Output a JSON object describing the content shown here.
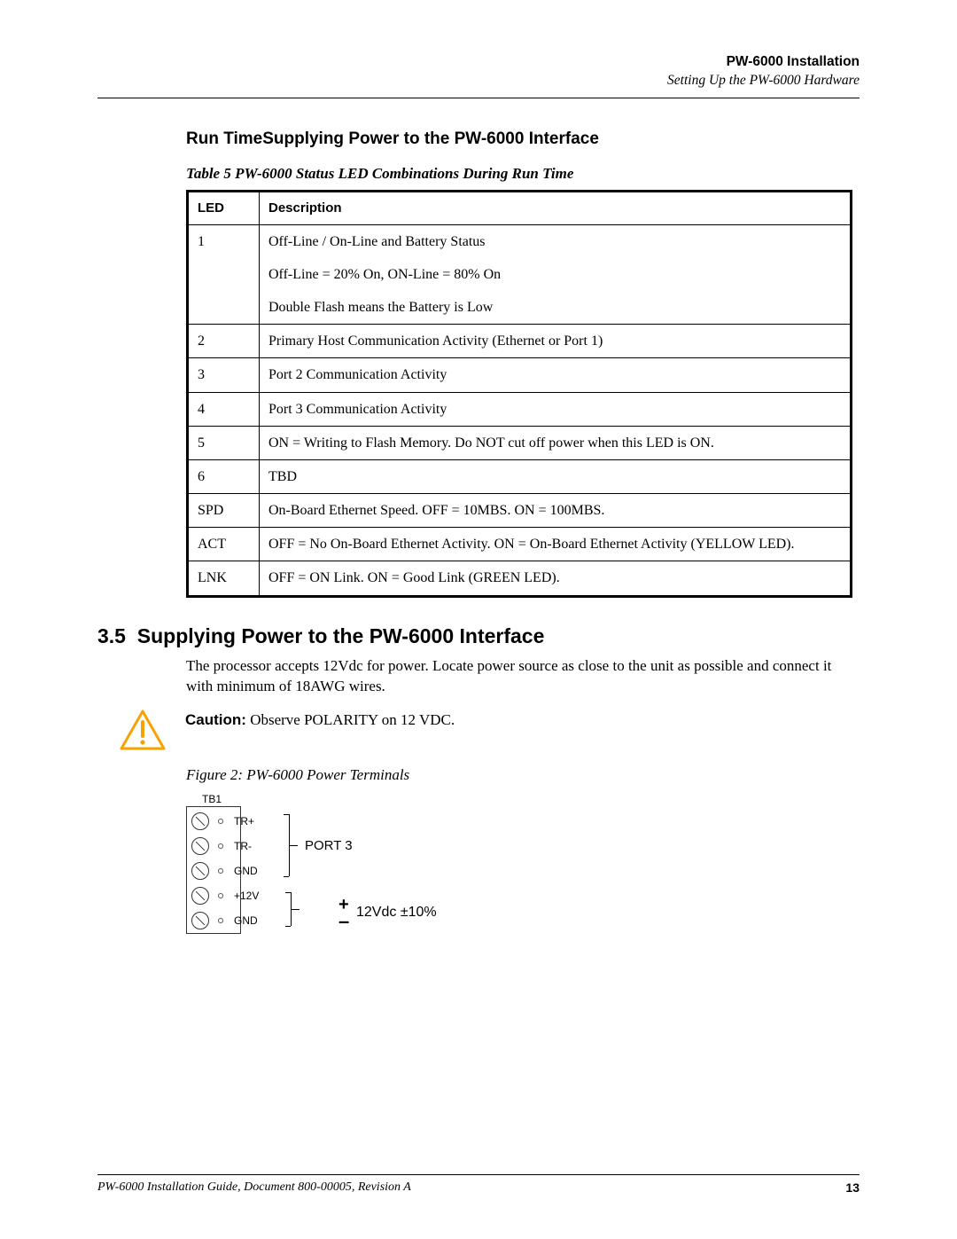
{
  "header": {
    "doc_title": "PW-6000 Installation",
    "section_path": "Setting Up the PW-6000 Hardware"
  },
  "subheading": "Run TimeSupplying Power to the PW-6000 Interface",
  "table": {
    "caption": "Table 5  PW-6000 Status LED Combinations During Run Time",
    "columns": [
      "LED",
      "Description"
    ],
    "rows": [
      {
        "led": "1",
        "desc_lines": [
          "Off-Line / On-Line and Battery Status",
          "Off-Line = 20% On, ON-Line = 80% On",
          "Double Flash means the Battery is Low"
        ]
      },
      {
        "led": "2",
        "desc_lines": [
          "Primary Host Communication Activity (Ethernet or Port 1)"
        ]
      },
      {
        "led": "3",
        "desc_lines": [
          "Port 2 Communication Activity"
        ]
      },
      {
        "led": "4",
        "desc_lines": [
          "Port 3 Communication Activity"
        ]
      },
      {
        "led": "5",
        "desc_lines": [
          "ON = Writing to Flash Memory. Do NOT cut off power when this LED is ON."
        ]
      },
      {
        "led": "6",
        "desc_lines": [
          "TBD"
        ]
      },
      {
        "led": "SPD",
        "desc_lines": [
          "On-Board Ethernet Speed. OFF = 10MBS. ON = 100MBS."
        ]
      },
      {
        "led": "ACT",
        "desc_lines": [
          "OFF = No On-Board Ethernet Activity. ON = On-Board Ethernet Activity (YELLOW LED)."
        ]
      },
      {
        "led": "LNK",
        "desc_lines": [
          "OFF = ON Link. ON = Good Link (GREEN LED)."
        ]
      }
    ]
  },
  "section": {
    "number": "3.5",
    "title": "Supplying Power to the PW-6000 Interface",
    "body": "The processor accepts 12Vdc for power. Locate power source as close to the unit as possible and connect it with minimum of 18AWG wires.",
    "caution_label": "Caution:",
    "caution_text": " Observe POLARITY on 12 VDC."
  },
  "figure": {
    "caption": "Figure 2:    PW-6000 Power Terminals",
    "block_label": "TB1",
    "pins": [
      "TR+",
      "TR-",
      "GND",
      "+12V",
      "GND"
    ],
    "group1_label": "PORT 3",
    "group2_label": "12Vdc ±10%",
    "plus_sign": "+",
    "minus_sign": "–"
  },
  "footer": {
    "left": "PW-6000 Installation Guide, Document 800-00005, Revision A",
    "page_number": "13"
  },
  "colors": {
    "caution_icon": "#f5a300",
    "text": "#000000",
    "rule": "#000000"
  }
}
